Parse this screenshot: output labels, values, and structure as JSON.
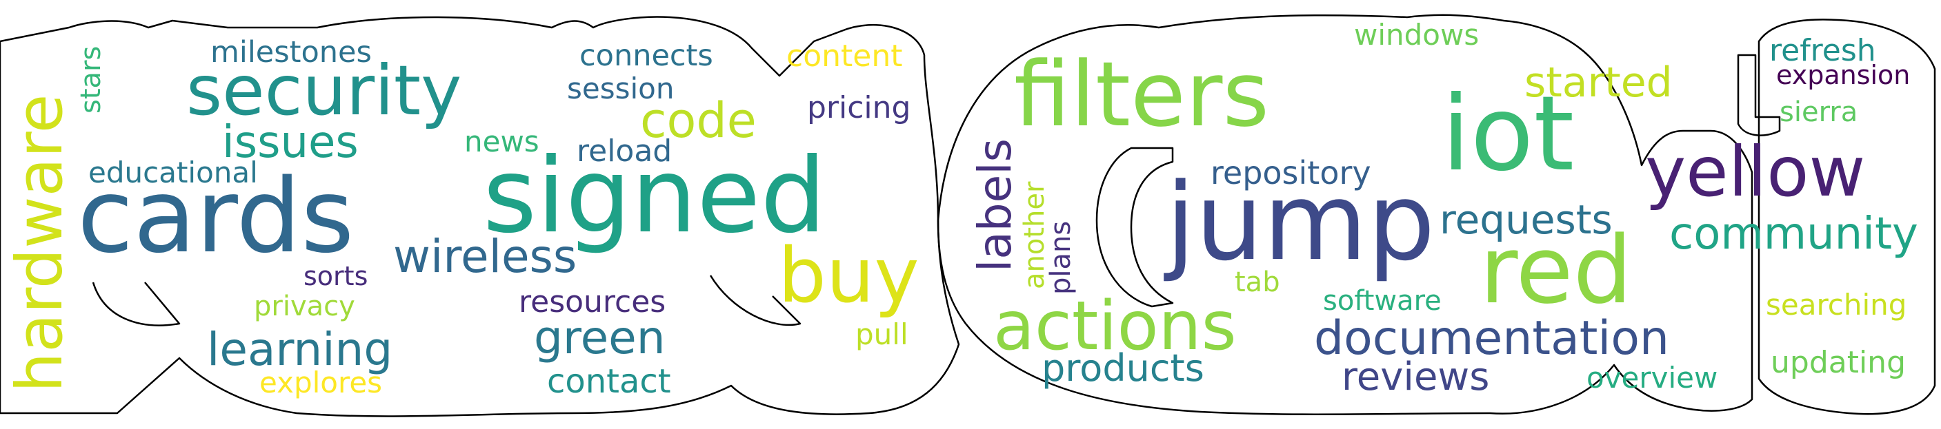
{
  "words": [
    {
      "text": "hardware",
      "color": "#d2e21b"
    },
    {
      "text": "stars",
      "color": "#35b779"
    },
    {
      "text": "milestones",
      "color": "#2c728e"
    },
    {
      "text": "security",
      "color": "#21918c"
    },
    {
      "text": "issues",
      "color": "#1f9e89"
    },
    {
      "text": "educational",
      "color": "#2a788e"
    },
    {
      "text": "cards",
      "color": "#31688e"
    },
    {
      "text": "sorts",
      "color": "#472d7b"
    },
    {
      "text": "privacy",
      "color": "#a0da39"
    },
    {
      "text": "learning",
      "color": "#2a788e"
    },
    {
      "text": "explores",
      "color": "#fde725"
    },
    {
      "text": "news",
      "color": "#35b779"
    },
    {
      "text": "connects",
      "color": "#2c728e"
    },
    {
      "text": "session",
      "color": "#31688e"
    },
    {
      "text": "code",
      "color": "#bddf26"
    },
    {
      "text": "reload",
      "color": "#31688e"
    },
    {
      "text": "signed",
      "color": "#1fa187"
    },
    {
      "text": "wireless",
      "color": "#31688e"
    },
    {
      "text": "resources",
      "color": "#472d7b"
    },
    {
      "text": "green",
      "color": "#2a788e"
    },
    {
      "text": "contact",
      "color": "#21918c"
    },
    {
      "text": "buy",
      "color": "#dde318"
    },
    {
      "text": "pull",
      "color": "#bddf26"
    },
    {
      "text": "content",
      "color": "#fde725"
    },
    {
      "text": "pricing",
      "color": "#443983"
    },
    {
      "text": "filters",
      "color": "#86d549"
    },
    {
      "text": "labels",
      "color": "#46327e"
    },
    {
      "text": "another",
      "color": "#b5de2b"
    },
    {
      "text": "plans",
      "color": "#46327e"
    },
    {
      "text": "actions",
      "color": "#8ed645"
    },
    {
      "text": "products",
      "color": "#26828e"
    },
    {
      "text": "jump",
      "color": "#3e4a89"
    },
    {
      "text": "repository",
      "color": "#355f8d"
    },
    {
      "text": "tab",
      "color": "#a0da39"
    },
    {
      "text": "windows",
      "color": "#6ece58"
    },
    {
      "text": "started",
      "color": "#c2df23"
    },
    {
      "text": "iot",
      "color": "#3bbb75"
    },
    {
      "text": "requests",
      "color": "#2c728e"
    },
    {
      "text": "red",
      "color": "#8ed645"
    },
    {
      "text": "software",
      "color": "#2ab07f"
    },
    {
      "text": "documentation",
      "color": "#3b528b"
    },
    {
      "text": "reviews",
      "color": "#404688"
    },
    {
      "text": "overview",
      "color": "#25ac82"
    },
    {
      "text": "yellow",
      "color": "#482173"
    },
    {
      "text": "community",
      "color": "#20a486"
    },
    {
      "text": "refresh",
      "color": "#21918c"
    },
    {
      "text": "expansion",
      "color": "#440154"
    },
    {
      "text": "sierra",
      "color": "#5ec962"
    },
    {
      "text": "searching",
      "color": "#c8e020"
    },
    {
      "text": "updating",
      "color": "#6ece58"
    }
  ]
}
